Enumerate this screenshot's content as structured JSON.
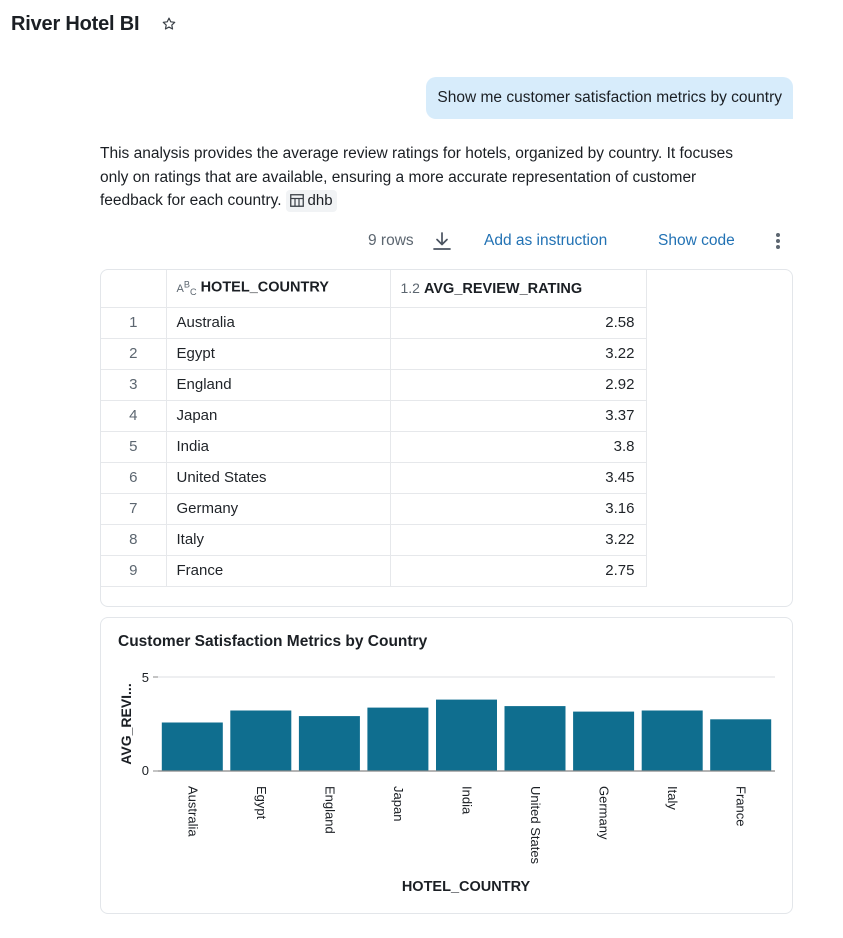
{
  "header": {
    "title": "River Hotel BI"
  },
  "user_message": "Show me customer satisfaction metrics by country",
  "answer": {
    "text": "This analysis provides the average review ratings for hotels, organized by country. It focuses only on ratings that are available, ensuring a more accurate representation of customer feedback for each country.",
    "table_chip": "dhb"
  },
  "toolbar": {
    "rows_count": "9 rows",
    "add_instruction": "Add as instruction",
    "show_code": "Show code"
  },
  "table": {
    "columns": [
      {
        "type_icon": "ABC",
        "label": "HOTEL_COUNTRY"
      },
      {
        "type_icon": "1.2",
        "label": "AVG_REVIEW_RATING"
      }
    ],
    "rows": [
      {
        "index": "1",
        "country": "Australia",
        "rating": "2.58"
      },
      {
        "index": "2",
        "country": "Egypt",
        "rating": "3.22"
      },
      {
        "index": "3",
        "country": "England",
        "rating": "2.92"
      },
      {
        "index": "4",
        "country": "Japan",
        "rating": "3.37"
      },
      {
        "index": "5",
        "country": "India",
        "rating": "3.8"
      },
      {
        "index": "6",
        "country": "United States",
        "rating": "3.45"
      },
      {
        "index": "7",
        "country": "Germany",
        "rating": "3.16"
      },
      {
        "index": "8",
        "country": "Italy",
        "rating": "3.22"
      },
      {
        "index": "9",
        "country": "France",
        "rating": "2.75"
      }
    ]
  },
  "chart_data": {
    "type": "bar",
    "title": "Customer Satisfaction Metrics by Country",
    "xlabel": "HOTEL_COUNTRY",
    "ylabel": "AVG_REVI...",
    "categories": [
      "Australia",
      "Egypt",
      "England",
      "Japan",
      "India",
      "United States",
      "Germany",
      "Italy",
      "France"
    ],
    "values": [
      2.58,
      3.22,
      2.92,
      3.37,
      3.8,
      3.45,
      3.16,
      3.22,
      2.75
    ],
    "ylim": [
      0,
      5
    ],
    "yticks": [
      "0",
      "5"
    ],
    "grid": true,
    "bar_color": "#0f6e8f"
  },
  "colors": {
    "accent": "#2272b4",
    "bubble": "#d7ecfb"
  }
}
